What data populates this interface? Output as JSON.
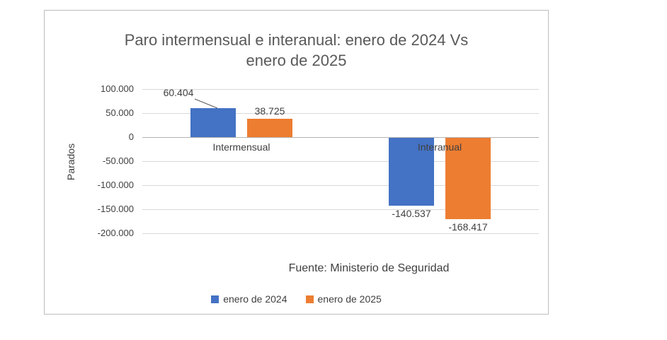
{
  "chart": {
    "title_line1": "Paro intermensual e interanual: enero de 2024 Vs",
    "title_line2": "enero de 2025",
    "ylabel": "Parados",
    "source_note": "Fuente: Ministerio de Seguridad"
  },
  "chart_data": {
    "type": "bar",
    "title": "Paro intermensual e interanual: enero de 2024 Vs enero de 2025",
    "xlabel": "",
    "ylabel": "Parados",
    "categories": [
      "Intermensual",
      "Interanual"
    ],
    "series": [
      {
        "name": "enero de 2024",
        "color": "#4472C4",
        "values": [
          60404,
          -140537
        ],
        "data_labels": [
          "60.404",
          "-140.537"
        ]
      },
      {
        "name": "enero de 2025",
        "color": "#ED7D31",
        "values": [
          38725,
          -168417
        ],
        "data_labels": [
          "38.725",
          "-168.417"
        ]
      }
    ],
    "y_ticks": [
      100000,
      50000,
      0,
      -50000,
      -100000,
      -150000,
      -200000
    ],
    "y_tick_labels": [
      "100.000",
      "50.000",
      "0",
      "-50.000",
      "-100.000",
      "-150.000",
      "-200.000"
    ],
    "ylim": [
      -200000,
      100000
    ],
    "grid": true,
    "legend_position": "bottom",
    "annotation": "Fuente: Ministerio de Seguridad"
  }
}
